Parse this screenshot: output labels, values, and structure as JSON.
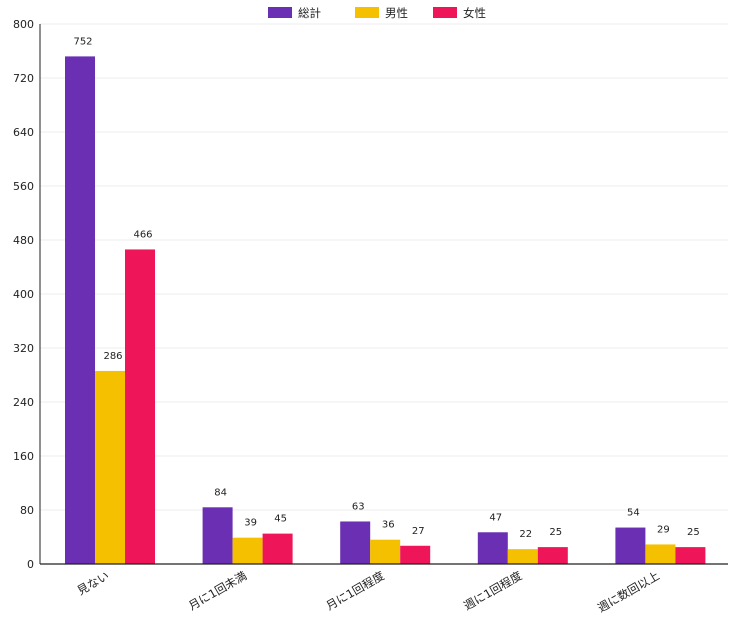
{
  "chart_data": {
    "type": "bar",
    "categories": [
      "見ない",
      "月に1回未満",
      "月に1回程度",
      "週に1回程度",
      "週に数回以上"
    ],
    "series": [
      {
        "name": "総計",
        "values": [
          752,
          84,
          63,
          47,
          54
        ],
        "color": "#6a2fb3"
      },
      {
        "name": "男性",
        "values": [
          286,
          39,
          36,
          22,
          29
        ],
        "color": "#f5c000"
      },
      {
        "name": "女性",
        "values": [
          466,
          45,
          27,
          25,
          25
        ],
        "color": "#ee1558"
      }
    ],
    "ylim": [
      0,
      800
    ],
    "yticks": [
      0,
      80,
      160,
      240,
      320,
      400,
      480,
      560,
      640,
      720,
      800
    ],
    "grid": true,
    "legend_position": "top-center",
    "data_labels": true
  }
}
